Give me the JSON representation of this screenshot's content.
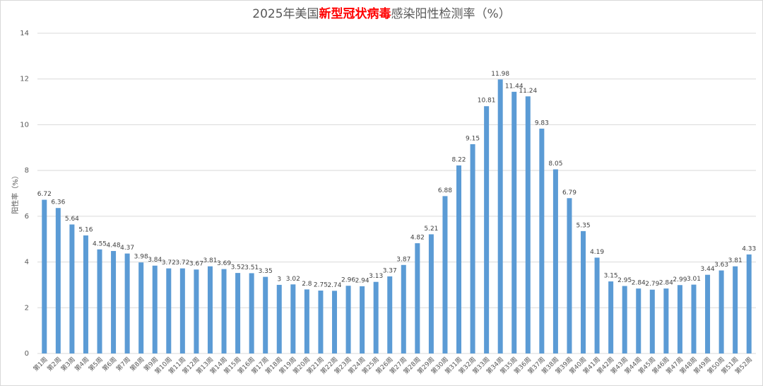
{
  "chart_data": {
    "type": "bar",
    "title": {
      "before": "2025年美国",
      "highlight": "新型冠状病毒",
      "after": "感染阳性检测率（%）"
    },
    "highlight_color": "#ff0000",
    "y_label": "阳性率（%）",
    "categories": [
      "第1周",
      "第2周",
      "第3周",
      "第4周",
      "第5周",
      "第6周",
      "第7周",
      "第8周",
      "第9周",
      "第10周",
      "第11周",
      "第12周",
      "第13周",
      "第14周",
      "第15周",
      "第16周",
      "第17周",
      "第18周",
      "第19周",
      "第20周",
      "第21周",
      "第22周",
      "第23周",
      "第24周",
      "第25周",
      "第26周",
      "第27周",
      "第28周",
      "第29周",
      "第30周",
      "第31周",
      "第32周",
      "第33周",
      "第34周",
      "第35周",
      "第36周",
      "第37周",
      "第38周",
      "第39周",
      "第40周",
      "第41周",
      "第42周",
      "第43周",
      "第44周",
      "第45周",
      "第46周",
      "第47周",
      "第48周",
      "第49周",
      "第50周",
      "第51周",
      "第52周"
    ],
    "values": [
      6.72,
      6.36,
      5.64,
      5.16,
      4.55,
      4.48,
      4.37,
      3.98,
      3.84,
      3.72,
      3.72,
      3.67,
      3.81,
      3.69,
      3.52,
      3.51,
      3.35,
      3,
      3.02,
      2.8,
      2.75,
      2.74,
      2.96,
      2.94,
      3.13,
      3.37,
      3.87,
      4.82,
      5.21,
      6.88,
      8.22,
      9.15,
      10.81,
      11.98,
      11.44,
      11.24,
      9.83,
      8.05,
      6.79,
      5.35,
      4.19,
      3.15,
      2.95,
      2.84,
      2.79,
      2.84,
      2.99,
      3.01,
      3.44,
      3.63,
      3.81,
      4.33
    ],
    "color": "#5b9bd5",
    "ylim": [
      0,
      14
    ],
    "yticks": [
      0,
      2,
      4,
      6,
      8,
      10,
      12,
      14
    ],
    "grid": true
  }
}
